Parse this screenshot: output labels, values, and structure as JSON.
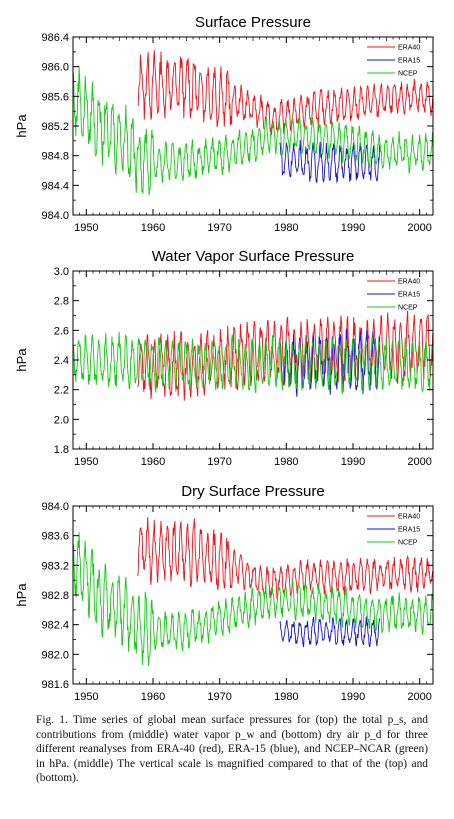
{
  "chart_data": [
    {
      "type": "line",
      "title": "Surface Pressure",
      "ylabel": "hPa",
      "xlim": [
        1948,
        2002
      ],
      "ylim": [
        984.0,
        986.4
      ],
      "yticks": [
        "984.0",
        "984.4",
        "984.8",
        "985.2",
        "985.6",
        "986.0",
        "986.4"
      ],
      "xticks": [
        "1950",
        "1960",
        "1970",
        "1980",
        "1990",
        "2000"
      ],
      "legend": "top-right",
      "series": [
        {
          "name": "ERA40",
          "color": "#e8141e",
          "start": 1957.7,
          "end": 2002,
          "amp": 0.18,
          "phase": 0.3,
          "decay_year": 1972,
          "trend": [
            [
              1957.7,
              985.75
            ],
            [
              1965,
              985.75
            ],
            [
              1972,
              985.55
            ],
            [
              1978,
              985.3
            ],
            [
              1985,
              985.45
            ],
            [
              1995,
              985.55
            ],
            [
              2002,
              985.6
            ]
          ]
        },
        {
          "name": "ERA15",
          "color": "#1414c8",
          "start": 1979,
          "end": 1994,
          "amp": 0.2,
          "phase": 1.2,
          "trend": [
            [
              1979,
              984.75
            ],
            [
              1986,
              984.7
            ],
            [
              1994,
              984.7
            ]
          ]
        },
        {
          "name": "NCEP",
          "color": "#14c814",
          "start": 1948,
          "end": 2002,
          "amp": 0.2,
          "phase": 2.0,
          "decay_year": 1960,
          "trend": [
            [
              1948,
              985.6
            ],
            [
              1952,
              985.2
            ],
            [
              1956,
              985.0
            ],
            [
              1958,
              984.75
            ],
            [
              1962,
              984.7
            ],
            [
              1967,
              984.75
            ],
            [
              1972,
              984.85
            ],
            [
              1977,
              985.05
            ],
            [
              1980,
              985.1
            ],
            [
              1988,
              985.0
            ],
            [
              1995,
              984.85
            ],
            [
              2002,
              984.85
            ]
          ]
        }
      ]
    },
    {
      "type": "line",
      "title": "Water Vapor Surface Pressure",
      "ylabel": "hPa",
      "xlim": [
        1948,
        2002
      ],
      "ylim": [
        1.8,
        3.0
      ],
      "yticks": [
        "1.8",
        "2.0",
        "2.2",
        "2.4",
        "2.6",
        "2.8",
        "3.0"
      ],
      "xticks": [
        "1950",
        "1960",
        "1970",
        "1980",
        "1990",
        "2000"
      ],
      "legend": "top-right",
      "series": [
        {
          "name": "ERA40",
          "color": "#e8141e",
          "start": 1957.7,
          "end": 2002,
          "amp": 0.17,
          "phase": 0.4,
          "trend": [
            [
              1957.7,
              2.37
            ],
            [
              1965,
              2.36
            ],
            [
              1972,
              2.42
            ],
            [
              1980,
              2.46
            ],
            [
              1990,
              2.46
            ],
            [
              2002,
              2.5
            ]
          ]
        },
        {
          "name": "ERA15",
          "color": "#1414c8",
          "start": 1979,
          "end": 1994,
          "amp": 0.16,
          "phase": 1.3,
          "trend": [
            [
              1979,
              2.36
            ],
            [
              1986,
              2.38
            ],
            [
              1994,
              2.4
            ]
          ]
        },
        {
          "name": "NCEP",
          "color": "#14c814",
          "start": 1948,
          "end": 2002,
          "amp": 0.14,
          "phase": 2.1,
          "trend": [
            [
              1948,
              2.4
            ],
            [
              1960,
              2.38
            ],
            [
              1970,
              2.37
            ],
            [
              1980,
              2.38
            ],
            [
              1990,
              2.37
            ],
            [
              2002,
              2.37
            ]
          ]
        }
      ]
    },
    {
      "type": "line",
      "title": "Dry Surface Pressure",
      "ylabel": "hPa",
      "xlim": [
        1948,
        2002
      ],
      "ylim": [
        981.6,
        984.0
      ],
      "yticks": [
        "981.6",
        "982.0",
        "982.4",
        "982.8",
        "983.2",
        "983.6",
        "984.0"
      ],
      "xticks": [
        "1950",
        "1960",
        "1970",
        "1980",
        "1990",
        "2000"
      ],
      "legend": "top-right",
      "series": [
        {
          "name": "ERA40",
          "color": "#e8141e",
          "start": 1957.7,
          "end": 2002,
          "amp": 0.18,
          "phase": 0.5,
          "decay_year": 1972,
          "trend": [
            [
              1957.7,
              983.4
            ],
            [
              1965,
              983.4
            ],
            [
              1972,
              983.2
            ],
            [
              1977,
              982.95
            ],
            [
              1982,
              983.05
            ],
            [
              1990,
              983.05
            ],
            [
              2002,
              983.1
            ]
          ]
        },
        {
          "name": "ERA15",
          "color": "#1414c8",
          "start": 1979,
          "end": 1994,
          "amp": 0.15,
          "phase": 1.4,
          "trend": [
            [
              1979,
              982.3
            ],
            [
              1986,
              982.3
            ],
            [
              1994,
              982.3
            ]
          ]
        },
        {
          "name": "NCEP",
          "color": "#14c814",
          "start": 1948,
          "end": 2002,
          "amp": 0.2,
          "phase": 2.2,
          "decay_year": 1960,
          "trend": [
            [
              1948,
              983.3
            ],
            [
              1952,
              982.8
            ],
            [
              1956,
              982.55
            ],
            [
              1958,
              982.35
            ],
            [
              1963,
              982.3
            ],
            [
              1968,
              982.4
            ],
            [
              1975,
              982.65
            ],
            [
              1980,
              982.75
            ],
            [
              1988,
              982.65
            ],
            [
              1995,
              982.55
            ],
            [
              2002,
              982.55
            ]
          ]
        }
      ]
    }
  ],
  "caption": {
    "fig_label": "Fig. 1.",
    "text": "Time series of global mean surface pressures for (top) the total p_s, and contributions from (middle) water vapor p_w and (bottom) dry air p_d for three different reanalyses from ERA-40 (red), ERA-15 (blue), and NCEP–NCAR (green) in hPa. (middle) The vertical scale is magnified compared to that of the (top) and (bottom)."
  }
}
